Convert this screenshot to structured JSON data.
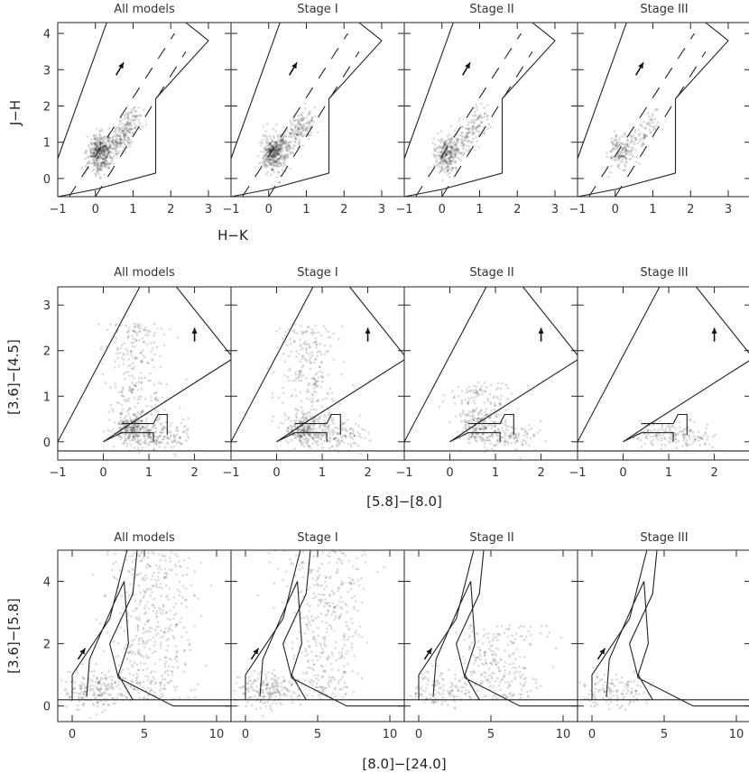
{
  "chart_data": [
    {
      "type": "scatter",
      "row": "top",
      "xlabel": "H−K",
      "ylabel": "J−H",
      "xlim": [
        -1,
        3.6
      ],
      "ylim": [
        -0.5,
        4.3
      ],
      "xticks": [
        "−1",
        "0",
        "1",
        "2",
        "3"
      ],
      "yticks": [
        "0",
        "1",
        "2",
        "3",
        "4"
      ],
      "panels": [
        {
          "title": "All models",
          "density": 1.0
        },
        {
          "title": "Stage I",
          "density": 0.9
        },
        {
          "title": "Stage II",
          "density": 0.65
        },
        {
          "title": "Stage III",
          "density": 0.35
        }
      ],
      "annotations": {
        "reddening_arrow": {
          "from": [
            0.55,
            2.85
          ],
          "to": [
            0.75,
            3.2
          ]
        },
        "dwarf_region": [
          [
            -1.0,
            0.55
          ],
          [
            0.3,
            4.3
          ],
          [
            2.4,
            4.3
          ],
          [
            3.0,
            3.8
          ],
          [
            1.6,
            2.2
          ],
          [
            1.6,
            0.15
          ],
          [
            0.0,
            -0.3
          ],
          [
            -1.0,
            -0.5
          ]
        ],
        "dashed_reddening_lines": [
          [
            [
              -0.7,
              -0.5
            ],
            [
              2.1,
              4.0
            ]
          ],
          [
            [
              0.0,
              -0.5
            ],
            [
              2.4,
              3.5
            ]
          ]
        ]
      }
    },
    {
      "type": "scatter",
      "row": "middle",
      "xlabel": "[5.8]−[8.0]",
      "ylabel": "[3.6]−[4.5]",
      "xlim": [
        -1,
        2.8
      ],
      "ylim": [
        -0.4,
        3.4
      ],
      "xticks": [
        "−1",
        "0",
        "1",
        "2"
      ],
      "yticks": [
        "0",
        "1",
        "2",
        "3"
      ],
      "panels": [
        {
          "title": "All models",
          "density": 1.0
        },
        {
          "title": "Stage I",
          "density": 0.95
        },
        {
          "title": "Stage II",
          "density": 0.6
        },
        {
          "title": "Stage III",
          "density": 0.25
        }
      ],
      "annotations": {
        "reddening_arrow": {
          "from": [
            2.0,
            2.2
          ],
          "to": [
            2.0,
            2.5
          ]
        },
        "stage_I_region": [
          [
            -1.0,
            0.0
          ],
          [
            0.8,
            3.4
          ],
          [
            1.6,
            3.4
          ],
          [
            2.8,
            1.9
          ],
          [
            2.8,
            1.8
          ],
          [
            0.6,
            0.4
          ],
          [
            0.0,
            0.0
          ]
        ],
        "stage_II_box": [
          [
            0.0,
            0.0
          ],
          [
            0.4,
            0.2
          ],
          [
            1.1,
            0.2
          ],
          [
            1.1,
            0.0
          ]
        ],
        "stage_II_box_upper": [
          [
            0.4,
            0.4
          ],
          [
            1.1,
            0.4
          ],
          [
            1.2,
            0.6
          ],
          [
            1.4,
            0.6
          ],
          [
            1.4,
            0.15
          ]
        ],
        "lower_bound": -0.2
      }
    },
    {
      "type": "scatter",
      "row": "bottom",
      "xlabel": "[8.0]−[24.0]",
      "ylabel": "[3.6]−[5.8]",
      "xlim": [
        -1,
        11
      ],
      "ylim": [
        -0.5,
        5
      ],
      "xticks": [
        "0",
        "5",
        "10"
      ],
      "yticks": [
        "0",
        "2",
        "4"
      ],
      "panels": [
        {
          "title": "All models",
          "density": 1.0
        },
        {
          "title": "Stage I",
          "density": 0.9
        },
        {
          "title": "Stage II",
          "density": 0.55
        },
        {
          "title": "Stage III",
          "density": 0.2
        }
      ],
      "annotations": {
        "reddening_arrow": {
          "from": [
            0.4,
            1.5
          ],
          "to": [
            0.9,
            1.85
          ]
        },
        "outer_region": [
          [
            0.0,
            0.2
          ],
          [
            0.0,
            1.0
          ],
          [
            2.6,
            2.8
          ],
          [
            3.8,
            5.0
          ],
          [
            4.5,
            5.0
          ],
          [
            4.2,
            3.6
          ],
          [
            2.6,
            2.0
          ],
          [
            3.2,
            0.9
          ],
          [
            7.0,
            0.0
          ],
          [
            11.0,
            0.0
          ],
          [
            11.0,
            -0.5
          ]
        ],
        "inner_region": [
          [
            1.0,
            0.3
          ],
          [
            1.2,
            1.5
          ],
          [
            2.8,
            3.2
          ],
          [
            3.6,
            4.0
          ],
          [
            3.9,
            2.0
          ],
          [
            3.2,
            1.0
          ],
          [
            4.2,
            0.2
          ]
        ],
        "lower_bound": 0.2
      }
    }
  ]
}
